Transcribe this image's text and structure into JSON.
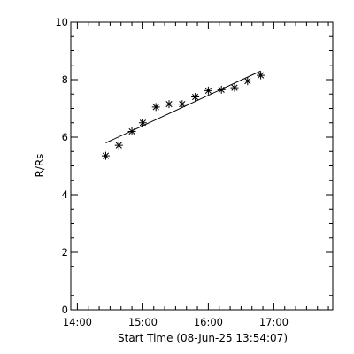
{
  "chart_data": {
    "type": "scatter",
    "title": "",
    "xlabel": "Start Time (08-Jun-25 13:54:07)",
    "ylabel": "R/Rs",
    "xlim": [
      "13:54",
      "17:54"
    ],
    "ylim": [
      0,
      10
    ],
    "x_ticks": [
      "14:00",
      "15:00",
      "16:00",
      "17:00"
    ],
    "y_ticks": [
      "0",
      "2",
      "4",
      "6",
      "8",
      "10"
    ],
    "grid": false,
    "legend": "none",
    "series": [
      {
        "marker": "asterisk",
        "points": [
          {
            "x": "14:26",
            "y": 5.35
          },
          {
            "x": "14:38",
            "y": 5.72
          },
          {
            "x": "14:50",
            "y": 6.2
          },
          {
            "x": "15:00",
            "y": 6.5
          },
          {
            "x": "15:12",
            "y": 7.05
          },
          {
            "x": "15:24",
            "y": 7.15
          },
          {
            "x": "15:36",
            "y": 7.15
          },
          {
            "x": "15:48",
            "y": 7.4
          },
          {
            "x": "16:00",
            "y": 7.62
          },
          {
            "x": "16:12",
            "y": 7.65
          },
          {
            "x": "16:24",
            "y": 7.72
          },
          {
            "x": "16:36",
            "y": 7.95
          },
          {
            "x": "16:48",
            "y": 8.15
          }
        ]
      }
    ],
    "fit_line": {
      "start": {
        "x": "14:26",
        "y": 5.8
      },
      "end": {
        "x": "16:48",
        "y": 8.3
      }
    },
    "colors": {
      "background": "#ffffff",
      "foreground": "#000000"
    }
  }
}
